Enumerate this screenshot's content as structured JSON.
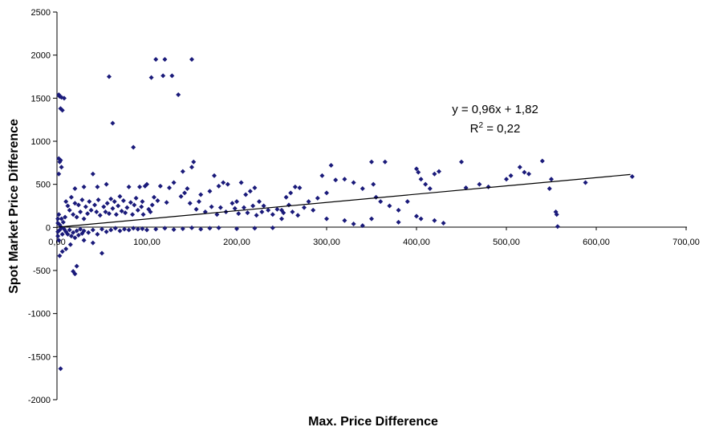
{
  "chart_data": {
    "type": "scatter",
    "title": "",
    "xlabel": "Max. Price Difference",
    "ylabel": "Spot Market Price Difference",
    "xlim": [
      0,
      700
    ],
    "ylim": [
      -2000,
      2500
    ],
    "x_ticks": [
      "0,00",
      "100,00",
      "200,00",
      "300,00",
      "400,00",
      "500,00",
      "600,00",
      "700,00"
    ],
    "y_ticks": [
      "2500",
      "2000",
      "1500",
      "1000",
      "500",
      "0",
      "-500",
      "-1000",
      "-1500",
      "-2000"
    ],
    "grid": false,
    "legend": "none",
    "marker_color": "#1a1a7a",
    "trendline": {
      "equation": "y = 0,96x + 1,82",
      "r2_prefix": "R",
      "r2_sup": "2",
      "r2_suffix": " = 0,22",
      "slope": 0.96,
      "intercept": 1.82,
      "x_start": 0,
      "x_end": 638
    },
    "series": [
      {
        "points": [
          [
            2,
            1540
          ],
          [
            3,
            1520
          ],
          [
            5,
            1510
          ],
          [
            8,
            1500
          ],
          [
            4,
            1380
          ],
          [
            6,
            1360
          ],
          [
            2,
            800
          ],
          [
            4,
            780
          ],
          [
            3,
            760
          ],
          [
            5,
            700
          ],
          [
            2,
            620
          ],
          [
            4,
            -1640
          ],
          [
            3,
            -330
          ],
          [
            6,
            -280
          ],
          [
            10,
            -250
          ],
          [
            15,
            -200
          ],
          [
            18,
            -510
          ],
          [
            20,
            -540
          ],
          [
            22,
            -450
          ],
          [
            40,
            -180
          ],
          [
            50,
            -300
          ],
          [
            30,
            -150
          ],
          [
            58,
            1750
          ],
          [
            62,
            1210
          ],
          [
            85,
            930
          ],
          [
            105,
            1740
          ],
          [
            110,
            1950
          ],
          [
            120,
            1950
          ],
          [
            118,
            1760
          ],
          [
            128,
            1760
          ],
          [
            135,
            1540
          ],
          [
            150,
            1950
          ],
          [
            100,
            500
          ],
          [
            115,
            480
          ],
          [
            130,
            520
          ],
          [
            145,
            450
          ],
          [
            150,
            700
          ],
          [
            152,
            760
          ],
          [
            140,
            650
          ],
          [
            125,
            460
          ],
          [
            98,
            480
          ],
          [
            92,
            470
          ],
          [
            160,
            380
          ],
          [
            170,
            420
          ],
          [
            175,
            600
          ],
          [
            180,
            480
          ],
          [
            185,
            520
          ],
          [
            190,
            500
          ],
          [
            195,
            280
          ],
          [
            200,
            300
          ],
          [
            205,
            520
          ],
          [
            210,
            380
          ],
          [
            215,
            420
          ],
          [
            220,
            460
          ],
          [
            225,
            300
          ],
          [
            230,
            250
          ],
          [
            240,
            150
          ],
          [
            250,
            200
          ],
          [
            255,
            350
          ],
          [
            260,
            400
          ],
          [
            265,
            470
          ],
          [
            270,
            460
          ],
          [
            280,
            300
          ],
          [
            290,
            340
          ],
          [
            295,
            600
          ],
          [
            300,
            400
          ],
          [
            305,
            720
          ],
          [
            310,
            550
          ],
          [
            320,
            560
          ],
          [
            330,
            520
          ],
          [
            340,
            450
          ],
          [
            350,
            760
          ],
          [
            352,
            500
          ],
          [
            355,
            350
          ],
          [
            360,
            300
          ],
          [
            365,
            760
          ],
          [
            370,
            250
          ],
          [
            380,
            200
          ],
          [
            390,
            300
          ],
          [
            400,
            680
          ],
          [
            402,
            640
          ],
          [
            405,
            560
          ],
          [
            410,
            500
          ],
          [
            415,
            450
          ],
          [
            420,
            620
          ],
          [
            425,
            650
          ],
          [
            430,
            50
          ],
          [
            450,
            760
          ],
          [
            455,
            460
          ],
          [
            500,
            560
          ],
          [
            505,
            600
          ],
          [
            515,
            700
          ],
          [
            520,
            640
          ],
          [
            525,
            620
          ],
          [
            540,
            770
          ],
          [
            548,
            450
          ],
          [
            550,
            560
          ],
          [
            555,
            180
          ],
          [
            556,
            150
          ],
          [
            557,
            10
          ],
          [
            588,
            520
          ],
          [
            640,
            590
          ],
          [
            350,
            100
          ],
          [
            400,
            130
          ],
          [
            405,
            100
          ],
          [
            470,
            500
          ],
          [
            480,
            470
          ],
          [
            300,
            100
          ],
          [
            320,
            80
          ],
          [
            250,
            100
          ],
          [
            330,
            40
          ],
          [
            380,
            60
          ],
          [
            420,
            80
          ],
          [
            340,
            20
          ],
          [
            20,
            450
          ],
          [
            30,
            470
          ],
          [
            40,
            620
          ],
          [
            45,
            470
          ],
          [
            55,
            500
          ],
          [
            60,
            330
          ],
          [
            70,
            360
          ],
          [
            80,
            470
          ],
          [
            88,
            340
          ],
          [
            95,
            300
          ],
          [
            108,
            350
          ],
          [
            112,
            310
          ],
          [
            122,
            290
          ],
          [
            138,
            360
          ],
          [
            142,
            400
          ],
          [
            148,
            280
          ],
          [
            155,
            210
          ],
          [
            158,
            300
          ],
          [
            165,
            180
          ],
          [
            172,
            240
          ],
          [
            178,
            150
          ],
          [
            182,
            230
          ],
          [
            188,
            180
          ],
          [
            198,
            220
          ],
          [
            202,
            160
          ],
          [
            208,
            230
          ],
          [
            212,
            170
          ],
          [
            218,
            250
          ],
          [
            222,
            140
          ],
          [
            228,
            180
          ],
          [
            235,
            200
          ],
          [
            245,
            210
          ],
          [
            252,
            170
          ],
          [
            258,
            260
          ],
          [
            262,
            180
          ],
          [
            268,
            140
          ],
          [
            275,
            230
          ],
          [
            285,
            200
          ],
          [
            10,
            300
          ],
          [
            12,
            250
          ],
          [
            14,
            200
          ],
          [
            16,
            350
          ],
          [
            18,
            150
          ],
          [
            20,
            280
          ],
          [
            22,
            120
          ],
          [
            24,
            260
          ],
          [
            26,
            180
          ],
          [
            28,
            320
          ],
          [
            30,
            100
          ],
          [
            32,
            240
          ],
          [
            34,
            160
          ],
          [
            36,
            300
          ],
          [
            38,
            200
          ],
          [
            42,
            260
          ],
          [
            44,
            180
          ],
          [
            46,
            320
          ],
          [
            48,
            140
          ],
          [
            52,
            240
          ],
          [
            54,
            180
          ],
          [
            56,
            280
          ],
          [
            58,
            160
          ],
          [
            62,
            220
          ],
          [
            64,
            300
          ],
          [
            66,
            150
          ],
          [
            68,
            250
          ],
          [
            72,
            190
          ],
          [
            74,
            310
          ],
          [
            76,
            170
          ],
          [
            78,
            230
          ],
          [
            82,
            290
          ],
          [
            84,
            150
          ],
          [
            86,
            260
          ],
          [
            90,
            200
          ],
          [
            94,
            240
          ],
          [
            96,
            150
          ],
          [
            102,
            210
          ],
          [
            104,
            180
          ],
          [
            106,
            260
          ],
          [
            10,
            -50
          ],
          [
            12,
            -80
          ],
          [
            14,
            -30
          ],
          [
            16,
            -100
          ],
          [
            18,
            -60
          ],
          [
            20,
            -120
          ],
          [
            22,
            -40
          ],
          [
            24,
            -90
          ],
          [
            26,
            -20
          ],
          [
            28,
            -70
          ],
          [
            30,
            -40
          ],
          [
            35,
            -60
          ],
          [
            40,
            -30
          ],
          [
            45,
            -80
          ],
          [
            50,
            -20
          ],
          [
            55,
            -50
          ],
          [
            60,
            -30
          ],
          [
            65,
            -10
          ],
          [
            70,
            -40
          ],
          [
            75,
            -20
          ],
          [
            80,
            -30
          ],
          [
            85,
            -10
          ],
          [
            90,
            -20
          ],
          [
            95,
            -15
          ],
          [
            100,
            -30
          ],
          [
            110,
            -20
          ],
          [
            120,
            -10
          ],
          [
            130,
            -25
          ],
          [
            140,
            -15
          ],
          [
            150,
            -5
          ],
          [
            160,
            -20
          ],
          [
            170,
            -10
          ],
          [
            180,
            -5
          ],
          [
            200,
            -15
          ],
          [
            220,
            -10
          ],
          [
            240,
            -5
          ],
          [
            1,
            100
          ],
          [
            1,
            -100
          ],
          [
            1,
            50
          ],
          [
            1,
            -50
          ],
          [
            2,
            150
          ],
          [
            2,
            -150
          ],
          [
            3,
            30
          ],
          [
            3,
            -30
          ],
          [
            5,
            0
          ],
          [
            5,
            100
          ],
          [
            6,
            -80
          ],
          [
            7,
            60
          ],
          [
            8,
            -20
          ],
          [
            9,
            120
          ]
        ]
      }
    ]
  }
}
